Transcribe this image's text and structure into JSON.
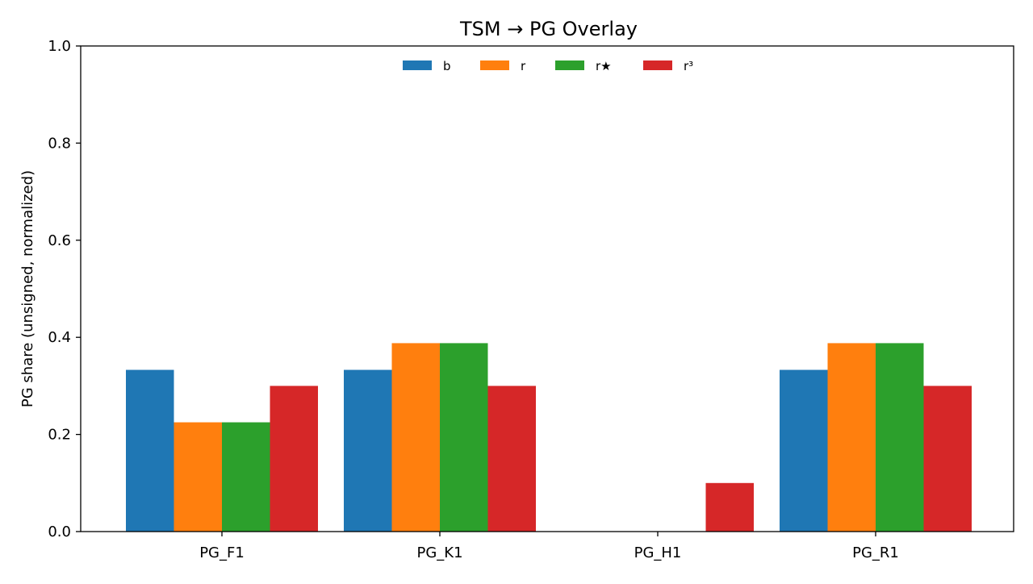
{
  "chart_data": {
    "type": "bar",
    "title": "TSM → PG Overlay",
    "xlabel": "",
    "ylabel": "PG share (unsigned, normalized)",
    "categories": [
      "PG_F1",
      "PG_K1",
      "PG_H1",
      "PG_R1"
    ],
    "series": [
      {
        "name": "b",
        "color": "#1f77b4",
        "values": [
          0.333,
          0.333,
          0.0,
          0.333
        ]
      },
      {
        "name": "r",
        "color": "#ff7f0e",
        "values": [
          0.225,
          0.388,
          0.0,
          0.388
        ]
      },
      {
        "name": "r★",
        "color": "#2ca02c",
        "values": [
          0.225,
          0.388,
          0.0,
          0.388
        ]
      },
      {
        "name": "r³",
        "color": "#d62728",
        "values": [
          0.3,
          0.3,
          0.1,
          0.3
        ]
      }
    ],
    "ylim": [
      0,
      1.0
    ],
    "yticks": [
      "0.0",
      "0.2",
      "0.4",
      "0.6",
      "0.8",
      "1.0"
    ],
    "grid": false,
    "legend": {
      "placement": "top-center",
      "columns": 4
    }
  }
}
